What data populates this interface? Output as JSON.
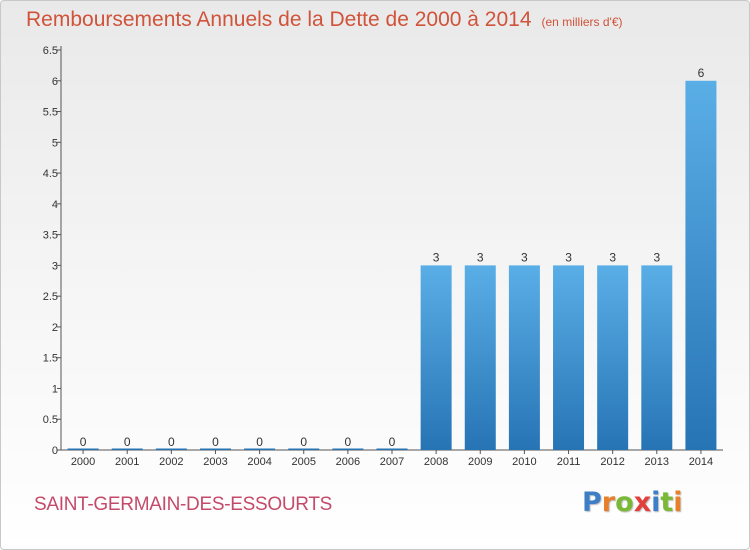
{
  "header": {
    "title": "Remboursements Annuels de la Dette de 2000 à 2014",
    "subtitle": "(en milliers d'€)"
  },
  "footer": {
    "commune": "SAINT-GERMAIN-DES-ESSOURTS",
    "brand": {
      "letters": [
        "P",
        "r",
        "o",
        "x",
        "i",
        "t",
        "i"
      ],
      "colors": [
        "#3d7fc6",
        "#e87f2a",
        "#79b935",
        "#e2413b",
        "#3d7fc6",
        "#79b935",
        "#e87f2a"
      ]
    }
  },
  "colors": {
    "bar_top": "#5aaee6",
    "bar_bottom": "#2774b5",
    "axis": "#555555"
  },
  "chart_data": {
    "type": "bar",
    "title": "Remboursements Annuels de la Dette de 2000 à 2014",
    "subtitle": "(en milliers d'€)",
    "categories": [
      "2000",
      "2001",
      "2002",
      "2003",
      "2004",
      "2005",
      "2006",
      "2007",
      "2008",
      "2009",
      "2010",
      "2011",
      "2012",
      "2013",
      "2014"
    ],
    "values": [
      0,
      0,
      0,
      0,
      0,
      0,
      0,
      0,
      3,
      3,
      3,
      3,
      3,
      3,
      6
    ],
    "ylim": [
      0,
      6.5
    ],
    "yticks": [
      "0",
      "0.5",
      "1",
      "1.5",
      "2",
      "2.5",
      "3",
      "3.5",
      "4",
      "4.5",
      "5",
      "5.5",
      "6",
      "6.5"
    ],
    "grid": false,
    "xlabel": "",
    "ylabel": ""
  }
}
